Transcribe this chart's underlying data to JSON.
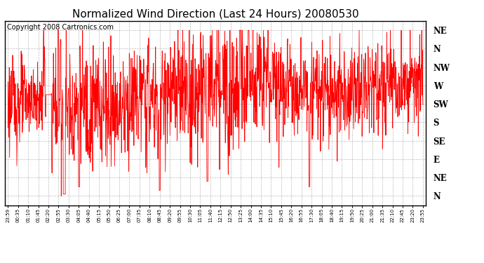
{
  "title": "Normalized Wind Direction (Last 24 Hours) 20080530",
  "copyright": "Copyright 2008 Cartronics.com",
  "background_color": "#ffffff",
  "line_color": "#ff0000",
  "line_width": 0.6,
  "ytick_labels": [
    "NE",
    "N",
    "NW",
    "W",
    "SW",
    "S",
    "SE",
    "E",
    "NE",
    "N"
  ],
  "ytick_values": [
    9,
    8,
    7,
    6,
    5,
    4,
    3,
    2,
    1,
    0
  ],
  "ylim": [
    -0.5,
    9.5
  ],
  "xtick_labels": [
    "23:59",
    "00:35",
    "01:10",
    "01:45",
    "02:20",
    "02:55",
    "03:30",
    "04:05",
    "04:40",
    "05:15",
    "05:50",
    "06:25",
    "07:00",
    "07:35",
    "08:10",
    "08:45",
    "09:20",
    "09:55",
    "10:30",
    "11:05",
    "11:40",
    "12:15",
    "12:50",
    "13:25",
    "14:00",
    "14:35",
    "15:10",
    "15:45",
    "16:20",
    "16:55",
    "17:30",
    "18:05",
    "18:40",
    "19:15",
    "19:50",
    "20:25",
    "21:00",
    "21:35",
    "22:10",
    "22:45",
    "23:20",
    "23:55"
  ],
  "grid_color": "#aaaaaa",
  "grid_style": "--",
  "title_fontsize": 11,
  "copyright_fontsize": 7
}
